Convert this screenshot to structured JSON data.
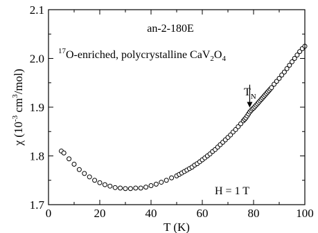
{
  "chart_data": {
    "type": "scatter",
    "title": "",
    "xlabel": "T (K)",
    "ylabel_parts": {
      "symbol": "χ",
      "open": " (10",
      "exp1": "-3",
      "mid": " cm",
      "exp2": "3",
      "close": "/mol)"
    },
    "xlim": [
      0,
      100
    ],
    "ylim": [
      1.7,
      2.1
    ],
    "x_ticks": [
      0,
      20,
      40,
      60,
      80,
      100
    ],
    "y_ticks": [
      1.7,
      1.8,
      1.9,
      2.0,
      2.1
    ],
    "x_tick_labels": [
      "0",
      "20",
      "40",
      "60",
      "80",
      "100"
    ],
    "y_tick_labels": [
      "1.7",
      "1.8",
      "1.9",
      "2.0",
      "2.1"
    ],
    "grid": false,
    "annotations": {
      "sample": "an-2-180E",
      "description_parts": {
        "sup": "17",
        "a": "O-enriched, polycrystalline CaV",
        "sub1": "2",
        "b": "O",
        "sub2": "4"
      },
      "field": "H = 1 T",
      "tn_label": "T",
      "tn_sub": "N",
      "tn_x": 78.5,
      "tn_y": 1.895
    },
    "series": [
      {
        "marker": "open-circle",
        "points": [
          [
            5.0,
            1.81
          ],
          [
            6.0,
            1.806
          ],
          [
            8.0,
            1.794
          ],
          [
            10.0,
            1.783
          ],
          [
            12.0,
            1.772
          ],
          [
            14.0,
            1.764
          ],
          [
            16.0,
            1.757
          ],
          [
            18.0,
            1.75
          ],
          [
            20.0,
            1.745
          ],
          [
            22.0,
            1.741
          ],
          [
            24.0,
            1.738
          ],
          [
            26.0,
            1.735
          ],
          [
            28.0,
            1.734
          ],
          [
            30.0,
            1.733
          ],
          [
            32.0,
            1.733
          ],
          [
            34.0,
            1.734
          ],
          [
            36.0,
            1.734
          ],
          [
            38.0,
            1.736
          ],
          [
            40.0,
            1.739
          ],
          [
            42.0,
            1.742
          ],
          [
            44.0,
            1.746
          ],
          [
            46.0,
            1.75
          ],
          [
            48.0,
            1.755
          ],
          [
            50.0,
            1.759
          ],
          [
            51.0,
            1.762
          ],
          [
            52.0,
            1.765
          ],
          [
            53.0,
            1.768
          ],
          [
            54.0,
            1.771
          ],
          [
            55.0,
            1.774
          ],
          [
            56.0,
            1.777
          ],
          [
            57.0,
            1.781
          ],
          [
            58.0,
            1.784
          ],
          [
            59.0,
            1.788
          ],
          [
            60.0,
            1.792
          ],
          [
            61.0,
            1.796
          ],
          [
            62.0,
            1.8
          ],
          [
            63.0,
            1.804
          ],
          [
            64.0,
            1.809
          ],
          [
            65.0,
            1.813
          ],
          [
            66.0,
            1.818
          ],
          [
            67.0,
            1.823
          ],
          [
            68.0,
            1.828
          ],
          [
            69.0,
            1.833
          ],
          [
            70.0,
            1.838
          ],
          [
            71.0,
            1.843
          ],
          [
            72.0,
            1.849
          ],
          [
            73.0,
            1.854
          ],
          [
            74.0,
            1.86
          ],
          [
            75.0,
            1.866
          ],
          [
            76.0,
            1.872
          ],
          [
            76.5,
            1.875
          ],
          [
            77.0,
            1.878
          ],
          [
            77.5,
            1.882
          ],
          [
            78.0,
            1.886
          ],
          [
            78.5,
            1.89
          ],
          [
            79.0,
            1.893
          ],
          [
            79.5,
            1.896
          ],
          [
            80.0,
            1.898
          ],
          [
            80.5,
            1.901
          ],
          [
            81.0,
            1.904
          ],
          [
            81.5,
            1.907
          ],
          [
            82.0,
            1.91
          ],
          [
            82.5,
            1.913
          ],
          [
            83.0,
            1.916
          ],
          [
            83.5,
            1.919
          ],
          [
            84.0,
            1.922
          ],
          [
            84.5,
            1.925
          ],
          [
            85.0,
            1.928
          ],
          [
            85.5,
            1.931
          ],
          [
            86.0,
            1.934
          ],
          [
            86.5,
            1.937
          ],
          [
            87.0,
            1.94
          ],
          [
            88.0,
            1.947
          ],
          [
            89.0,
            1.953
          ],
          [
            90.0,
            1.959
          ],
          [
            91.0,
            1.966
          ],
          [
            92.0,
            1.972
          ],
          [
            93.0,
            1.979
          ],
          [
            94.0,
            1.986
          ],
          [
            95.0,
            1.993
          ],
          [
            96.0,
            2.0
          ],
          [
            97.0,
            2.007
          ],
          [
            98.0,
            2.014
          ],
          [
            99.0,
            2.02
          ],
          [
            100.0,
            2.025
          ]
        ]
      }
    ]
  }
}
